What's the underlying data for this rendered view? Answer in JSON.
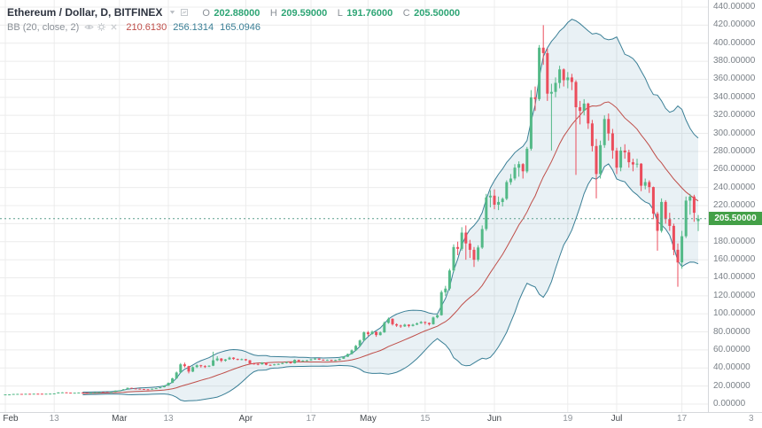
{
  "header": {
    "symbol_title": "Ethereum / Dollar, D, BITFINEX",
    "ohlc_items": [
      {
        "label": "O",
        "value": "202.88000"
      },
      {
        "label": "H",
        "value": "209.59000"
      },
      {
        "label": "L",
        "value": "191.76000"
      },
      {
        "label": "C",
        "value": "205.50000"
      }
    ],
    "indicator": {
      "label": "BB (20, close, 2)",
      "middle": "210.6130",
      "upper": "256.1314",
      "lower": "165.0946"
    },
    "icons": {
      "symbol_row": [
        "chevron-down",
        "chart-settings"
      ],
      "indicator_row": [
        "eye",
        "settings-gear",
        "close"
      ]
    }
  },
  "price_axis": {
    "labels": [
      "440.00000",
      "420.00000",
      "400.00000",
      "380.00000",
      "360.00000",
      "340.00000",
      "320.00000",
      "300.00000",
      "280.00000",
      "260.00000",
      "240.00000",
      "220.00000",
      "200.00000",
      "180.00000",
      "160.00000",
      "140.00000",
      "120.00000",
      "100.00000",
      "80.00000",
      "60.00000",
      "40.00000",
      "20.00000",
      "0.00000"
    ],
    "last_price_label": "205.50000"
  },
  "time_axis": {
    "labels": [
      {
        "text": "Feb",
        "slot": 0,
        "major": true
      },
      {
        "text": "13",
        "slot": 12,
        "major": false
      },
      {
        "text": "Mar",
        "slot": 28,
        "major": true
      },
      {
        "text": "13",
        "slot": 40,
        "major": false
      },
      {
        "text": "Apr",
        "slot": 59,
        "major": true
      },
      {
        "text": "17",
        "slot": 75,
        "major": false
      },
      {
        "text": "May",
        "slot": 89,
        "major": true
      },
      {
        "text": "15",
        "slot": 103,
        "major": false
      },
      {
        "text": "Jun",
        "slot": 120,
        "major": true
      },
      {
        "text": "19",
        "slot": 138,
        "major": false
      },
      {
        "text": "Jul",
        "slot": 150,
        "major": true
      },
      {
        "text": "17",
        "slot": 166,
        "major": false
      },
      {
        "text": "3",
        "slot": 183,
        "major": false
      }
    ]
  },
  "chart_data": {
    "type": "candlestick",
    "title": "Ethereum / Dollar",
    "exchange": "BITFINEX",
    "interval": "D",
    "ylim": [
      0,
      440
    ],
    "y_tick_step": 20,
    "grid": true,
    "overlay": {
      "name": "Bollinger Bands",
      "period": 20,
      "source": "close",
      "stdev": 2
    },
    "bb": {
      "period": 20,
      "stdev": 2
    },
    "last_price": 205.5,
    "colors": {
      "up": "#53b987",
      "down": "#eb4d5c",
      "bb_line": "#3a7f96",
      "bb_middle": "#bf4e49",
      "bb_fill": "rgba(83,150,180,0.13)",
      "grid": "#ececec",
      "axis_border": "#d5d8db",
      "last_price_line": "#5b9f8d",
      "last_price_tag": "#43a047",
      "ohlc_text": "#2ea575"
    },
    "candles": [
      [
        10.6,
        10.8,
        10.5,
        10.7
      ],
      [
        10.7,
        10.9,
        10.6,
        10.75
      ],
      [
        10.75,
        11.3,
        10.7,
        11.2
      ],
      [
        11.2,
        11.35,
        11.1,
        11.25
      ],
      [
        11.25,
        11.3,
        11.0,
        11.15
      ],
      [
        11.15,
        11.5,
        11.1,
        11.4
      ],
      [
        11.4,
        11.45,
        11.2,
        11.3
      ],
      [
        11.3,
        11.6,
        11.25,
        11.5
      ],
      [
        11.5,
        11.55,
        11.3,
        11.45
      ],
      [
        11.45,
        11.5,
        11.25,
        11.35
      ],
      [
        11.35,
        11.6,
        11.3,
        11.5
      ],
      [
        11.5,
        11.7,
        11.4,
        11.6
      ],
      [
        11.6,
        11.9,
        11.5,
        11.8
      ],
      [
        11.8,
        13.1,
        11.75,
        12.9
      ],
      [
        12.9,
        13.2,
        12.7,
        13.0
      ],
      [
        13.0,
        13.05,
        12.6,
        12.7
      ],
      [
        12.7,
        12.8,
        12.4,
        12.55
      ],
      [
        12.55,
        12.75,
        12.45,
        12.6
      ],
      [
        12.6,
        12.9,
        12.55,
        12.8
      ],
      [
        12.8,
        12.85,
        12.6,
        12.7
      ],
      [
        12.7,
        12.75,
        12.4,
        12.5
      ],
      [
        12.5,
        12.7,
        12.45,
        12.6
      ],
      [
        12.6,
        13.2,
        12.55,
        13.1
      ],
      [
        13.1,
        13.4,
        13.0,
        13.3
      ],
      [
        13.3,
        13.35,
        13.1,
        13.2
      ],
      [
        13.2,
        13.25,
        13.0,
        13.1
      ],
      [
        13.1,
        13.5,
        13.05,
        13.4
      ],
      [
        13.4,
        15.1,
        13.35,
        14.9
      ],
      [
        14.9,
        15.4,
        14.7,
        15.2
      ],
      [
        15.2,
        16.6,
        15.1,
        16.4
      ],
      [
        16.4,
        18.3,
        16.3,
        18.0
      ],
      [
        18.0,
        18.1,
        17.1,
        17.3
      ],
      [
        17.3,
        17.4,
        16.8,
        17.0
      ],
      [
        17.0,
        17.1,
        16.5,
        16.7
      ],
      [
        16.7,
        16.8,
        16.2,
        16.4
      ],
      [
        16.4,
        16.5,
        15.9,
        16.2
      ],
      [
        16.2,
        17.2,
        16.1,
        17.0
      ],
      [
        17.0,
        17.8,
        16.9,
        17.6
      ],
      [
        17.6,
        18.8,
        17.5,
        18.6
      ],
      [
        18.6,
        20.8,
        18.5,
        20.5
      ],
      [
        20.5,
        24.0,
        20.3,
        23.5
      ],
      [
        23.5,
        29.2,
        23.3,
        28.5
      ],
      [
        28.5,
        36.0,
        28.0,
        35.0
      ],
      [
        35.0,
        45.5,
        34.5,
        44.0
      ],
      [
        44.0,
        46.0,
        40.5,
        42.0
      ],
      [
        42.0,
        42.5,
        34.0,
        36.0
      ],
      [
        36.0,
        41.8,
        35.5,
        41.0
      ],
      [
        41.0,
        44.0,
        40.0,
        43.0
      ],
      [
        43.0,
        43.5,
        40.5,
        42.0
      ],
      [
        42.0,
        43.0,
        40.0,
        41.5
      ],
      [
        41.5,
        43.0,
        41.0,
        42.5
      ],
      [
        42.5,
        58.0,
        42.0,
        48.5
      ],
      [
        48.5,
        53.0,
        47.5,
        50.5
      ],
      [
        50.5,
        51.0,
        46.5,
        48.0
      ],
      [
        48.0,
        50.0,
        47.0,
        49.5
      ],
      [
        49.5,
        52.5,
        49.0,
        51.5
      ],
      [
        51.5,
        52.0,
        49.0,
        50.0
      ],
      [
        50.0,
        50.5,
        48.5,
        49.5
      ],
      [
        49.5,
        50.5,
        48.5,
        49.8
      ],
      [
        49.8,
        50.0,
        47.8,
        48.5
      ],
      [
        48.5,
        48.8,
        44.3,
        45.0
      ],
      [
        45.0,
        45.8,
        43.8,
        44.5
      ],
      [
        44.5,
        45.0,
        43.0,
        44.0
      ],
      [
        44.0,
        46.5,
        43.8,
        46.0
      ],
      [
        46.0,
        46.2,
        43.0,
        43.5
      ],
      [
        43.5,
        44.0,
        42.5,
        43.2
      ],
      [
        43.2,
        44.5,
        42.8,
        44.0
      ],
      [
        44.0,
        45.0,
        43.5,
        44.5
      ],
      [
        44.5,
        46.0,
        44.2,
        45.5
      ],
      [
        45.5,
        47.0,
        45.0,
        46.5
      ],
      [
        46.5,
        46.8,
        44.8,
        45.2
      ],
      [
        45.2,
        49.5,
        45.0,
        49.0
      ],
      [
        49.0,
        49.2,
        47.0,
        47.5
      ],
      [
        47.5,
        48.6,
        47.0,
        48.2
      ],
      [
        48.2,
        49.0,
        47.6,
        48.5
      ],
      [
        48.5,
        50.0,
        48.0,
        49.5
      ],
      [
        49.5,
        51.0,
        49.0,
        50.5
      ],
      [
        50.5,
        50.8,
        48.8,
        49.2
      ],
      [
        49.2,
        49.5,
        48.0,
        48.6
      ],
      [
        48.6,
        49.4,
        48.0,
        49.0
      ],
      [
        49.0,
        49.2,
        47.6,
        48.2
      ],
      [
        48.2,
        49.2,
        47.8,
        48.8
      ],
      [
        48.8,
        50.6,
        48.4,
        50.2
      ],
      [
        50.2,
        53.0,
        50.0,
        52.5
      ],
      [
        52.5,
        56.0,
        52.2,
        55.5
      ],
      [
        55.5,
        60.5,
        55.0,
        59.5
      ],
      [
        59.5,
        65.5,
        59.0,
        64.5
      ],
      [
        64.5,
        71.5,
        64.0,
        70.5
      ],
      [
        70.5,
        80.5,
        70.0,
        79.5
      ],
      [
        79.5,
        81.0,
        75.5,
        77.5
      ],
      [
        77.5,
        81.5,
        77.0,
        80.0
      ],
      [
        80.0,
        80.5,
        74.5,
        76.5
      ],
      [
        76.5,
        80.5,
        76.0,
        79.5
      ],
      [
        79.5,
        91.5,
        79.0,
        90.0
      ],
      [
        90.0,
        96.0,
        89.0,
        94.5
      ],
      [
        94.5,
        95.0,
        87.0,
        88.5
      ],
      [
        88.5,
        89.5,
        85.5,
        87.0
      ],
      [
        87.0,
        88.0,
        84.5,
        86.0
      ],
      [
        86.0,
        89.0,
        85.5,
        88.0
      ],
      [
        88.0,
        88.5,
        85.0,
        86.5
      ],
      [
        86.5,
        89.0,
        86.0,
        88.0
      ],
      [
        88.0,
        90.5,
        87.5,
        89.5
      ],
      [
        89.5,
        92.0,
        89.0,
        91.0
      ],
      [
        91.0,
        91.5,
        88.0,
        90.0
      ],
      [
        90.0,
        90.5,
        87.0,
        88.5
      ],
      [
        88.5,
        97.0,
        88.0,
        96.0
      ],
      [
        96.0,
        99.5,
        95.0,
        98.5
      ],
      [
        98.5,
        126.0,
        98.0,
        124.0
      ],
      [
        124.0,
        131.0,
        120.0,
        128.0
      ],
      [
        128.0,
        150.0,
        126.0,
        148.0
      ],
      [
        148.0,
        177.0,
        146.0,
        174.0
      ],
      [
        174.0,
        180.0,
        165.0,
        172.0
      ],
      [
        172.0,
        196.0,
        170.0,
        190.0
      ],
      [
        190.0,
        198.0,
        160.0,
        178.0
      ],
      [
        178.0,
        182.0,
        162.0,
        171.0
      ],
      [
        171.0,
        174.0,
        152.0,
        160.0
      ],
      [
        160.0,
        176.0,
        158.0,
        173.5
      ],
      [
        173.5,
        198.0,
        172.0,
        194.0
      ],
      [
        194.0,
        233.0,
        192.0,
        229.0
      ],
      [
        229.0,
        237.0,
        218.0,
        231.0
      ],
      [
        231.0,
        238.0,
        216.0,
        221.0
      ],
      [
        221.0,
        230.0,
        215.0,
        224.0
      ],
      [
        224.0,
        229.0,
        219.0,
        227.5
      ],
      [
        227.5,
        248.0,
        226.0,
        246.0
      ],
      [
        246.0,
        255.0,
        243.0,
        250.0
      ],
      [
        250.0,
        266.0,
        248.0,
        262.0
      ],
      [
        262.0,
        269.0,
        252.0,
        266.0
      ],
      [
        266.0,
        267.0,
        250.0,
        258.0
      ],
      [
        258.0,
        285.0,
        256.0,
        283.0
      ],
      [
        283.0,
        348.0,
        281.0,
        340.0
      ],
      [
        340.0,
        352.0,
        325.0,
        338.0
      ],
      [
        338.0,
        398.0,
        336.0,
        395.0
      ],
      [
        395.0,
        420.0,
        376.0,
        389.0
      ],
      [
        389.0,
        394.0,
        336.0,
        344.0
      ],
      [
        344.0,
        355.0,
        281.0,
        346.0
      ],
      [
        346.0,
        362.0,
        340.0,
        356.0
      ],
      [
        356.0,
        375.0,
        350.0,
        371.0
      ],
      [
        371.0,
        372.0,
        352.0,
        359.0
      ],
      [
        359.0,
        368.0,
        350.0,
        362.0
      ],
      [
        362.0,
        366.0,
        348.0,
        357.0
      ],
      [
        357.0,
        359.0,
        254.0,
        329.0
      ],
      [
        329.0,
        336.0,
        310.0,
        325.0
      ],
      [
        325.0,
        338.0,
        320.0,
        333.0
      ],
      [
        333.0,
        334.0,
        305.0,
        311.0
      ],
      [
        311.0,
        315.0,
        280.0,
        286.0
      ],
      [
        286.0,
        294.0,
        228.0,
        255.0
      ],
      [
        255.0,
        292.0,
        250.0,
        287.0
      ],
      [
        287.0,
        320.0,
        284.0,
        316.0
      ],
      [
        316.0,
        322.0,
        292.0,
        300.0
      ],
      [
        300.0,
        305.0,
        272.0,
        281.0
      ],
      [
        281.0,
        284.0,
        255.0,
        262.0
      ],
      [
        262.0,
        285.0,
        258.0,
        281.0
      ],
      [
        281.0,
        288.0,
        272.0,
        279.0
      ],
      [
        279.0,
        282.0,
        262.0,
        268.0
      ],
      [
        268.0,
        272.0,
        258.0,
        265.5
      ],
      [
        265.5,
        272.0,
        262.0,
        266.5
      ],
      [
        266.5,
        267.0,
        236.0,
        242.0
      ],
      [
        242.0,
        250.0,
        238.0,
        246.0
      ],
      [
        246.0,
        248.0,
        234.0,
        240.5
      ],
      [
        240.5,
        241.0,
        205.0,
        211.0
      ],
      [
        211.0,
        213.0,
        170.0,
        192.0
      ],
      [
        192.0,
        228.0,
        190.0,
        224.0
      ],
      [
        224.0,
        226.0,
        200.0,
        205.0
      ],
      [
        205.0,
        212.0,
        192.0,
        197.5
      ],
      [
        197.5,
        200.0,
        165.0,
        171.0
      ],
      [
        171.0,
        178.0,
        130.0,
        157.0
      ],
      [
        157.0,
        192.0,
        150.0,
        186.0
      ],
      [
        186.0,
        230.0,
        184.0,
        225.5
      ],
      [
        225.5,
        233.0,
        210.0,
        230.0
      ],
      [
        230.0,
        232.0,
        202.0,
        212.0
      ],
      [
        202.88,
        209.59,
        191.76,
        205.5
      ]
    ]
  }
}
